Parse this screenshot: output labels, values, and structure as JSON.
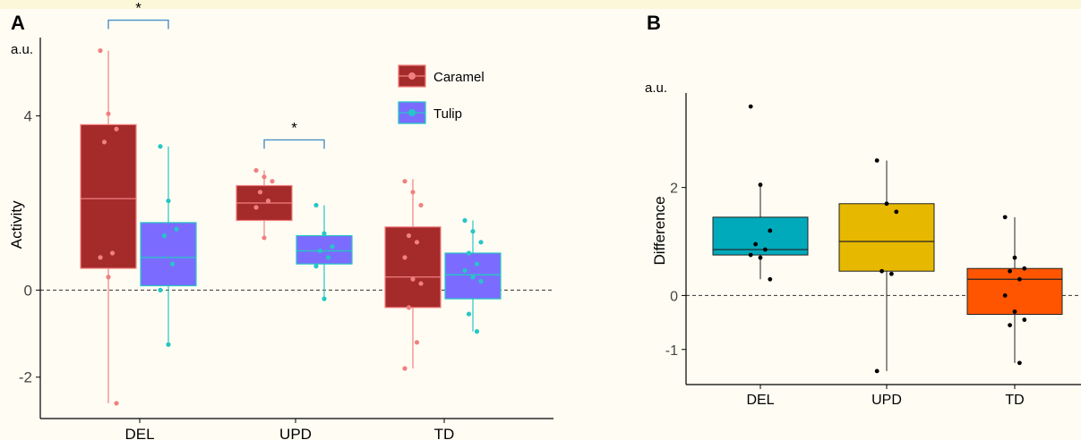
{
  "chart_data": [
    {
      "panel_label": "A",
      "type": "box",
      "ylabel": "Activity",
      "unit_label": "a.u.",
      "categories": [
        "DEL",
        "UPD",
        "TD"
      ],
      "yticks": [
        -2,
        0,
        4
      ],
      "ylim": [
        -2.95,
        5.8
      ],
      "reference_line": 0,
      "legend_position": "top-right",
      "series": [
        {
          "name": "Caramel",
          "fill": "#a52a2a",
          "line": "#f08080",
          "boxes": [
            {
              "q1": 0.5,
              "median": 2.1,
              "q3": 3.8,
              "whisker_low": -2.6,
              "whisker_high": 5.5
            },
            {
              "q1": 1.6,
              "median": 2.0,
              "q3": 2.4,
              "whisker_low": 1.2,
              "whisker_high": 2.75
            },
            {
              "q1": -0.4,
              "median": 0.3,
              "q3": 1.45,
              "whisker_low": -1.8,
              "whisker_high": 2.55
            }
          ],
          "points": [
            [
              5.5,
              4.05,
              3.7,
              3.4,
              0.85,
              0.75,
              0.3,
              -2.6
            ],
            [
              2.75,
              2.6,
              2.5,
              2.25,
              2.05,
              1.9,
              1.2
            ],
            [
              2.5,
              2.25,
              1.95,
              1.25,
              1.1,
              0.75,
              0.25,
              0.15,
              -0.4,
              -1.2,
              -1.8
            ]
          ]
        },
        {
          "name": "Tulip",
          "fill": "#7b6cff",
          "line": "#26c6c6",
          "boxes": [
            {
              "q1": 0.1,
              "median": 0.75,
              "q3": 1.55,
              "whisker_low": -1.2,
              "whisker_high": 3.3
            },
            {
              "q1": 0.6,
              "median": 0.9,
              "q3": 1.25,
              "whisker_low": -0.2,
              "whisker_high": 1.95
            },
            {
              "q1": -0.2,
              "median": 0.35,
              "q3": 0.85,
              "whisker_low": -0.95,
              "whisker_high": 1.6
            }
          ],
          "points": [
            [
              3.3,
              2.05,
              1.4,
              1.25,
              0.6,
              0.0,
              -1.25
            ],
            [
              1.95,
              1.3,
              1.0,
              0.9,
              0.75,
              0.55,
              -0.2
            ],
            [
              1.6,
              1.35,
              1.1,
              0.85,
              0.6,
              0.45,
              0.3,
              0.2,
              -0.55,
              -0.95
            ]
          ]
        }
      ],
      "significance": [
        {
          "category": "DEL",
          "label": "*",
          "y": 6.2
        },
        {
          "category": "UPD",
          "label": "*",
          "y": 3.45
        }
      ]
    },
    {
      "panel_label": "B",
      "type": "box",
      "ylabel": "Difference",
      "unit_label": "a.u.",
      "categories": [
        "DEL",
        "UPD",
        "TD"
      ],
      "yticks": [
        -1,
        0,
        2
      ],
      "ylim": [
        -1.65,
        3.75
      ],
      "reference_line": 0,
      "boxes": [
        {
          "category": "DEL",
          "fill": "#00aabb",
          "q1": 0.75,
          "median": 0.85,
          "q3": 1.45,
          "whisker_low": 0.3,
          "whisker_high": 2.05
        },
        {
          "category": "UPD",
          "fill": "#e6b800",
          "q1": 0.45,
          "median": 1.0,
          "q3": 1.7,
          "whisker_low": -1.4,
          "whisker_high": 2.5
        },
        {
          "category": "TD",
          "fill": "#ff5500",
          "q1": -0.35,
          "median": 0.3,
          "q3": 0.5,
          "whisker_low": -1.25,
          "whisker_high": 1.45
        }
      ],
      "points": [
        [
          3.5,
          2.05,
          1.2,
          0.95,
          0.85,
          0.75,
          0.7,
          0.3
        ],
        [
          2.5,
          1.7,
          1.55,
          0.45,
          0.4,
          -1.4
        ],
        [
          1.45,
          0.7,
          0.5,
          0.45,
          0.3,
          0.0,
          -0.3,
          -0.45,
          -0.55,
          -1.25
        ]
      ]
    }
  ]
}
